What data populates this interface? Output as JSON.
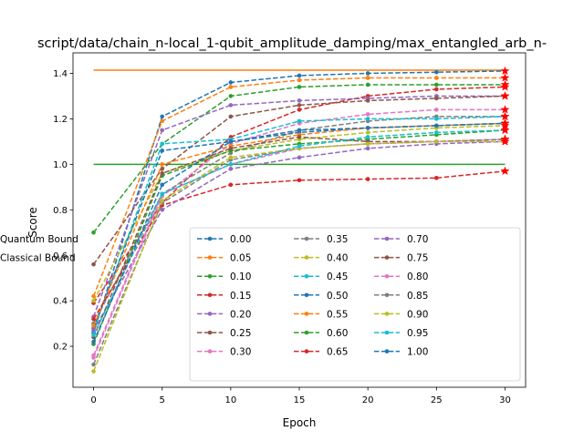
{
  "chart_data": {
    "type": "line",
    "title": "script/data/chain_n-local_1-qubit_amplitude_damping/max_entangled_arb_n-",
    "xlabel": "Epoch",
    "ylabel": "Score",
    "xlim": [
      -1.5,
      31.5
    ],
    "ylim": [
      0.02,
      1.49
    ],
    "x_ticks": [
      0,
      5,
      10,
      15,
      20,
      25,
      30
    ],
    "y_ticks": [
      0.2,
      0.4,
      0.6,
      0.8,
      1.0,
      1.2,
      1.4
    ],
    "x_tick_labels": [
      "0",
      "5",
      "10",
      "15",
      "20",
      "25",
      "30"
    ],
    "y_tick_labels": [
      "0.2",
      "0.4",
      "0.6",
      "0.8",
      "1.0",
      "1.2",
      "1.4"
    ],
    "grid": false,
    "legend_position": "lower-right",
    "legend_columns": 3,
    "x": [
      0,
      5,
      10,
      15,
      20,
      25,
      30
    ],
    "final_marker": "star",
    "series": [
      {
        "name": "0.00",
        "color": "#1f77b4",
        "values": [
          0.26,
          1.21,
          1.36,
          1.39,
          1.4,
          1.405,
          1.41
        ]
      },
      {
        "name": "0.05",
        "color": "#ff7f0e",
        "values": [
          0.42,
          1.19,
          1.34,
          1.37,
          1.38,
          1.38,
          1.38
        ]
      },
      {
        "name": "0.10",
        "color": "#2ca02c",
        "values": [
          0.7,
          1.09,
          1.3,
          1.34,
          1.35,
          1.35,
          1.35
        ]
      },
      {
        "name": "0.15",
        "color": "#d62728",
        "values": [
          0.39,
          0.83,
          1.12,
          1.24,
          1.3,
          1.33,
          1.34
        ]
      },
      {
        "name": "0.20",
        "color": "#9467bd",
        "values": [
          0.33,
          1.15,
          1.26,
          1.28,
          1.29,
          1.3,
          1.3
        ]
      },
      {
        "name": "0.25",
        "color": "#8c564b",
        "values": [
          0.56,
          0.98,
          1.21,
          1.26,
          1.28,
          1.29,
          1.3
        ]
      },
      {
        "name": "0.30",
        "color": "#e377c2",
        "values": [
          0.15,
          0.86,
          1.09,
          1.18,
          1.22,
          1.24,
          1.24
        ]
      },
      {
        "name": "0.35",
        "color": "#7f7f7f",
        "values": [
          0.3,
          0.87,
          1.05,
          1.15,
          1.19,
          1.21,
          1.21
        ]
      },
      {
        "name": "0.40",
        "color": "#bcbd22",
        "values": [
          0.4,
          0.96,
          1.06,
          1.11,
          1.14,
          1.16,
          1.17
        ]
      },
      {
        "name": "0.45",
        "color": "#17becf",
        "values": [
          0.27,
          1.09,
          1.11,
          1.19,
          1.2,
          1.2,
          1.21
        ]
      },
      {
        "name": "0.50",
        "color": "#1f77b4",
        "values": [
          0.28,
          1.06,
          1.1,
          1.14,
          1.16,
          1.17,
          1.18
        ]
      },
      {
        "name": "0.55",
        "color": "#ff7f0e",
        "values": [
          0.29,
          1.0,
          1.08,
          1.13,
          1.16,
          1.17,
          1.18
        ]
      },
      {
        "name": "0.60",
        "color": "#2ca02c",
        "values": [
          0.21,
          0.95,
          1.06,
          1.09,
          1.11,
          1.13,
          1.15
        ]
      },
      {
        "name": "0.65",
        "color": "#d62728",
        "values": [
          0.32,
          0.82,
          0.91,
          0.93,
          0.935,
          0.94,
          0.97
        ]
      },
      {
        "name": "0.70",
        "color": "#9467bd",
        "values": [
          0.27,
          0.8,
          0.98,
          1.03,
          1.07,
          1.09,
          1.1
        ]
      },
      {
        "name": "0.75",
        "color": "#8c564b",
        "values": [
          0.24,
          0.96,
          1.07,
          1.12,
          1.1,
          1.1,
          1.11
        ]
      },
      {
        "name": "0.80",
        "color": "#e377c2",
        "values": [
          0.16,
          0.87,
          1.0,
          1.07,
          1.09,
          1.1,
          1.11
        ]
      },
      {
        "name": "0.85",
        "color": "#7f7f7f",
        "values": [
          0.12,
          0.83,
          1.02,
          1.07,
          1.09,
          1.1,
          1.11
        ]
      },
      {
        "name": "0.90",
        "color": "#bcbd22",
        "values": [
          0.09,
          0.84,
          1.03,
          1.07,
          1.09,
          1.1,
          1.1
        ]
      },
      {
        "name": "0.95",
        "color": "#17becf",
        "values": [
          0.25,
          0.87,
          1.0,
          1.08,
          1.12,
          1.14,
          1.15
        ]
      },
      {
        "name": "1.00",
        "color": "#1f77b4",
        "values": [
          0.22,
          0.91,
          1.1,
          1.15,
          1.16,
          1.17,
          1.18
        ]
      }
    ],
    "bounds": [
      {
        "name": "Quantum Bound",
        "color": "#ff7f0e",
        "value": 1.414
      },
      {
        "name": "Classical Bound",
        "color": "#2ca02c",
        "value": 1.0
      }
    ]
  }
}
